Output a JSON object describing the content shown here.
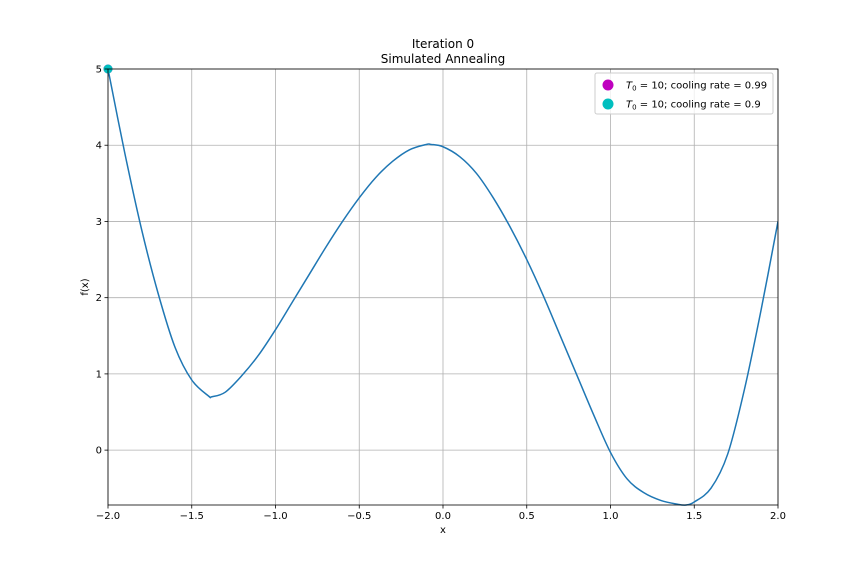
{
  "chart_data": {
    "type": "line",
    "title": "Iteration 0",
    "subtitle": "Simulated Annealing",
    "xlabel": "x",
    "ylabel": "f(x)",
    "xlim": [
      -2.0,
      2.0
    ],
    "ylim": [
      -0.72,
      5.0
    ],
    "grid": true,
    "legend_position": "top-right",
    "xticks": [
      {
        "value": -2.0,
        "label": "−2.0"
      },
      {
        "value": -1.5,
        "label": "−1.5"
      },
      {
        "value": -1.0,
        "label": "−1.0"
      },
      {
        "value": -0.5,
        "label": "−0.5"
      },
      {
        "value": 0.0,
        "label": "0.0"
      },
      {
        "value": 0.5,
        "label": "0.5"
      },
      {
        "value": 1.0,
        "label": "1.0"
      },
      {
        "value": 1.5,
        "label": "1.5"
      },
      {
        "value": 2.0,
        "label": "2.0"
      }
    ],
    "yticks": [
      {
        "value": 0,
        "label": "0"
      },
      {
        "value": 1,
        "label": "1"
      },
      {
        "value": 2,
        "label": "2"
      },
      {
        "value": 3,
        "label": "3"
      },
      {
        "value": 4,
        "label": "4"
      },
      {
        "value": 5,
        "label": "5"
      }
    ],
    "curve": {
      "color": "#1f77b4",
      "x": [
        -2.0,
        -1.9,
        -1.8,
        -1.7,
        -1.6,
        -1.5,
        -1.4,
        -1.38,
        -1.3,
        -1.2,
        -1.1,
        -1.0,
        -0.9,
        -0.8,
        -0.7,
        -0.6,
        -0.5,
        -0.4,
        -0.3,
        -0.2,
        -0.1,
        -0.07,
        0.0,
        0.1,
        0.2,
        0.3,
        0.4,
        0.5,
        0.6,
        0.7,
        0.8,
        0.9,
        1.0,
        1.1,
        1.2,
        1.3,
        1.4,
        1.45,
        1.5,
        1.6,
        1.7,
        1.8,
        1.9,
        2.0
      ],
      "y": [
        5.0,
        3.9,
        2.9,
        2.05,
        1.35,
        0.92,
        0.71,
        0.7,
        0.76,
        0.98,
        1.25,
        1.58,
        1.94,
        2.3,
        2.66,
        3.0,
        3.31,
        3.58,
        3.79,
        3.94,
        4.01,
        4.01,
        3.98,
        3.85,
        3.63,
        3.31,
        2.93,
        2.5,
        2.02,
        1.5,
        0.98,
        0.46,
        -0.03,
        -0.38,
        -0.56,
        -0.66,
        -0.71,
        -0.72,
        -0.68,
        -0.5,
        -0.05,
        0.8,
        1.85,
        3.0
      ]
    },
    "series": [
      {
        "name": "$T_0$ = 10; cooling rate = 0.99",
        "legend_symbol": "T",
        "legend_subscript": "0",
        "legend_rest": " = 10; cooling rate = 0.99",
        "color": "#bf00bf",
        "x": [
          -2.0
        ],
        "y": [
          5.0
        ]
      },
      {
        "name": "$T_0$ = 10; cooling rate = 0.9",
        "legend_symbol": "T",
        "legend_subscript": "0",
        "legend_rest": " = 10; cooling rate = 0.9",
        "color": "#00bfbf",
        "x": [
          -2.0
        ],
        "y": [
          5.0
        ]
      }
    ]
  }
}
